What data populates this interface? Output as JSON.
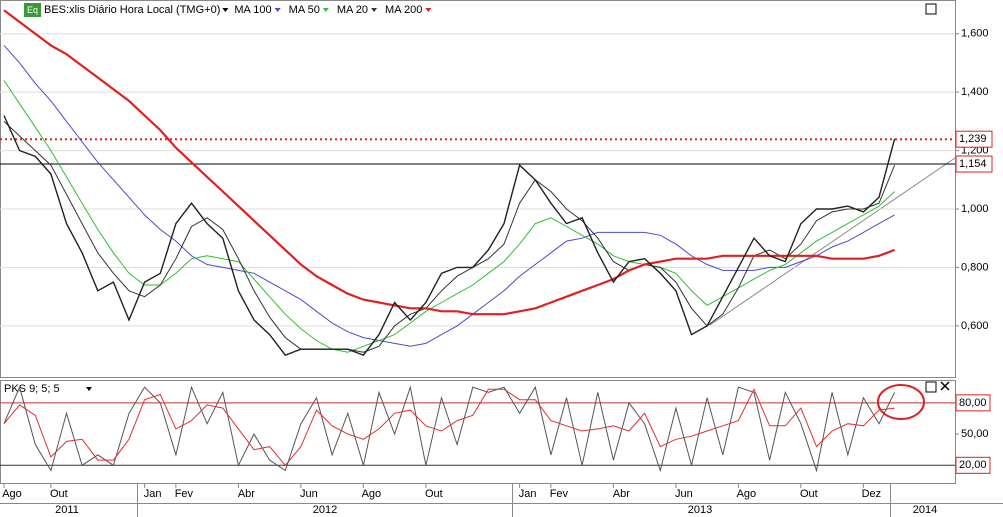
{
  "chart_data": [
    {
      "type": "line",
      "title": "BES:xlis Diário Hora Local (TMG+0)",
      "icon_label": "Eq",
      "categories": [
        "Ago",
        null,
        null,
        "Out",
        null,
        null,
        null,
        null,
        null,
        "Jan",
        null,
        "Fev",
        null,
        null,
        null,
        "Abr",
        null,
        null,
        null,
        "Jun",
        null,
        null,
        null,
        "Ago",
        null,
        null,
        null,
        "Out",
        null,
        null,
        null,
        null,
        null,
        "Jan",
        null,
        "Fev",
        null,
        null,
        null,
        "Abr",
        null,
        null,
        null,
        "Jun",
        null,
        null,
        null,
        "Ago",
        null,
        null,
        null,
        "Out",
        null,
        null,
        null,
        "Dez",
        null,
        null
      ],
      "years": [
        "2011",
        "2012",
        "2013",
        "2014"
      ],
      "ylim": [
        0.425,
        1.712
      ],
      "yticks": [
        {
          "value": 0.6,
          "label": "0,600"
        },
        {
          "value": 0.8,
          "label": "0,800"
        },
        {
          "value": 1.0,
          "label": "1,000"
        },
        {
          "value": 1.2,
          "label": "1,200"
        },
        {
          "value": 1.4,
          "label": "1,400"
        },
        {
          "value": 1.6,
          "label": "1,600"
        }
      ],
      "grid": true,
      "color": "#222222",
      "values": [
        1.32,
        1.2,
        1.18,
        1.12,
        0.95,
        0.85,
        0.72,
        0.75,
        0.62,
        0.75,
        0.78,
        0.95,
        1.02,
        0.95,
        0.9,
        0.72,
        0.62,
        0.57,
        0.5,
        0.52,
        0.52,
        0.52,
        0.52,
        0.5,
        0.57,
        0.68,
        0.62,
        0.68,
        0.78,
        0.8,
        0.8,
        0.86,
        0.95,
        1.15,
        1.1,
        1.02,
        0.95,
        0.97,
        0.85,
        0.75,
        0.82,
        0.83,
        0.78,
        0.72,
        0.57,
        0.6,
        0.7,
        0.8,
        0.9,
        0.84,
        0.82,
        0.95,
        1.0,
        1.0,
        1.01,
        0.99,
        1.04,
        1.24
      ],
      "series": [
        {
          "name": "MA 100",
          "color": "#4a4ad0",
          "values": [
            1.56,
            1.5,
            1.43,
            1.37,
            1.3,
            1.23,
            1.16,
            1.1,
            1.04,
            0.98,
            0.93,
            0.89,
            0.84,
            0.81,
            0.8,
            0.79,
            0.78,
            0.75,
            0.72,
            0.69,
            0.65,
            0.61,
            0.58,
            0.56,
            0.55,
            0.54,
            0.53,
            0.54,
            0.57,
            0.6,
            0.64,
            0.68,
            0.72,
            0.77,
            0.81,
            0.85,
            0.89,
            0.9,
            0.92,
            0.92,
            0.92,
            0.92,
            0.91,
            0.88,
            0.84,
            0.81,
            0.79,
            0.79,
            0.79,
            0.8,
            0.8,
            0.82,
            0.84,
            0.87,
            0.89,
            0.92,
            0.95,
            0.98
          ]
        },
        {
          "name": "MA 50",
          "color": "#2fbf2f",
          "values": [
            1.44,
            1.36,
            1.28,
            1.2,
            1.11,
            1.02,
            0.93,
            0.85,
            0.78,
            0.74,
            0.74,
            0.78,
            0.83,
            0.84,
            0.83,
            0.82,
            0.76,
            0.7,
            0.64,
            0.59,
            0.55,
            0.52,
            0.51,
            0.53,
            0.55,
            0.57,
            0.61,
            0.65,
            0.68,
            0.71,
            0.74,
            0.78,
            0.82,
            0.88,
            0.95,
            0.97,
            0.94,
            0.91,
            0.88,
            0.84,
            0.82,
            0.81,
            0.8,
            0.78,
            0.72,
            0.67,
            0.7,
            0.73,
            0.76,
            0.79,
            0.81,
            0.85,
            0.89,
            0.92,
            0.95,
            0.98,
            1.01,
            1.06
          ]
        },
        {
          "name": "MA 20",
          "color": "#333333",
          "values": [
            1.3,
            1.25,
            1.2,
            1.15,
            1.05,
            0.95,
            0.85,
            0.78,
            0.72,
            0.7,
            0.74,
            0.83,
            0.94,
            0.97,
            0.93,
            0.83,
            0.72,
            0.63,
            0.56,
            0.52,
            0.52,
            0.52,
            0.52,
            0.51,
            0.53,
            0.6,
            0.64,
            0.66,
            0.72,
            0.77,
            0.8,
            0.83,
            0.88,
            1.02,
            1.1,
            1.06,
            1.0,
            0.96,
            0.9,
            0.82,
            0.79,
            0.81,
            0.8,
            0.75,
            0.66,
            0.6,
            0.64,
            0.73,
            0.84,
            0.86,
            0.83,
            0.88,
            0.96,
            0.99,
            1.0,
            1.0,
            1.02,
            1.15
          ]
        },
        {
          "name": "MA 200",
          "color": "#e02020",
          "values": [
            1.68,
            1.64,
            1.6,
            1.56,
            1.53,
            1.49,
            1.45,
            1.41,
            1.37,
            1.32,
            1.27,
            1.21,
            1.16,
            1.11,
            1.06,
            1.01,
            0.96,
            0.91,
            0.86,
            0.81,
            0.77,
            0.74,
            0.71,
            0.69,
            0.68,
            0.67,
            0.66,
            0.66,
            0.65,
            0.65,
            0.64,
            0.64,
            0.64,
            0.65,
            0.66,
            0.68,
            0.7,
            0.72,
            0.74,
            0.76,
            0.79,
            0.81,
            0.82,
            0.83,
            0.83,
            0.83,
            0.84,
            0.84,
            0.84,
            0.84,
            0.84,
            0.84,
            0.84,
            0.83,
            0.83,
            0.83,
            0.84,
            0.86
          ]
        }
      ],
      "reference_lines": [
        {
          "value": 1.239,
          "label": "1,239",
          "color": "#e02020",
          "style": "dotted"
        },
        {
          "value": 1.154,
          "label": "1,154",
          "color": "#000000",
          "style": "solid"
        }
      ]
    },
    {
      "type": "line",
      "title": "PKS 9; 5; 5",
      "ylim": [
        3,
        101
      ],
      "yticks": [
        {
          "value": 50,
          "label": "50,00"
        }
      ],
      "levels": [
        {
          "value": 80,
          "label": "80,00"
        },
        {
          "value": 20,
          "label": "20,00"
        }
      ],
      "series": [
        {
          "color": "#555555",
          "values": [
            60,
            95,
            40,
            15,
            70,
            20,
            30,
            20,
            70,
            95,
            80,
            30,
            95,
            60,
            90,
            20,
            50,
            25,
            15,
            60,
            85,
            30,
            70,
            20,
            90,
            50,
            95,
            20,
            85,
            40,
            95,
            90,
            95,
            70,
            95,
            30,
            85,
            20,
            90,
            25,
            80,
            60,
            15,
            75,
            20,
            85,
            30,
            95,
            90,
            25,
            90,
            60,
            15,
            90,
            30,
            85,
            60,
            90
          ]
        },
        {
          "color": "#e03030",
          "values": [
            60,
            78,
            68,
            28,
            43,
            45,
            25,
            25,
            45,
            83,
            88,
            55,
            63,
            78,
            75,
            55,
            35,
            38,
            20,
            38,
            73,
            58,
            50,
            45,
            55,
            70,
            73,
            58,
            53,
            63,
            68,
            93,
            93,
            83,
            83,
            63,
            58,
            53,
            55,
            58,
            53,
            70,
            38,
            45,
            48,
            53,
            58,
            63,
            93,
            58,
            58,
            75,
            38,
            53,
            60,
            58,
            73,
            75
          ]
        }
      ]
    }
  ]
}
